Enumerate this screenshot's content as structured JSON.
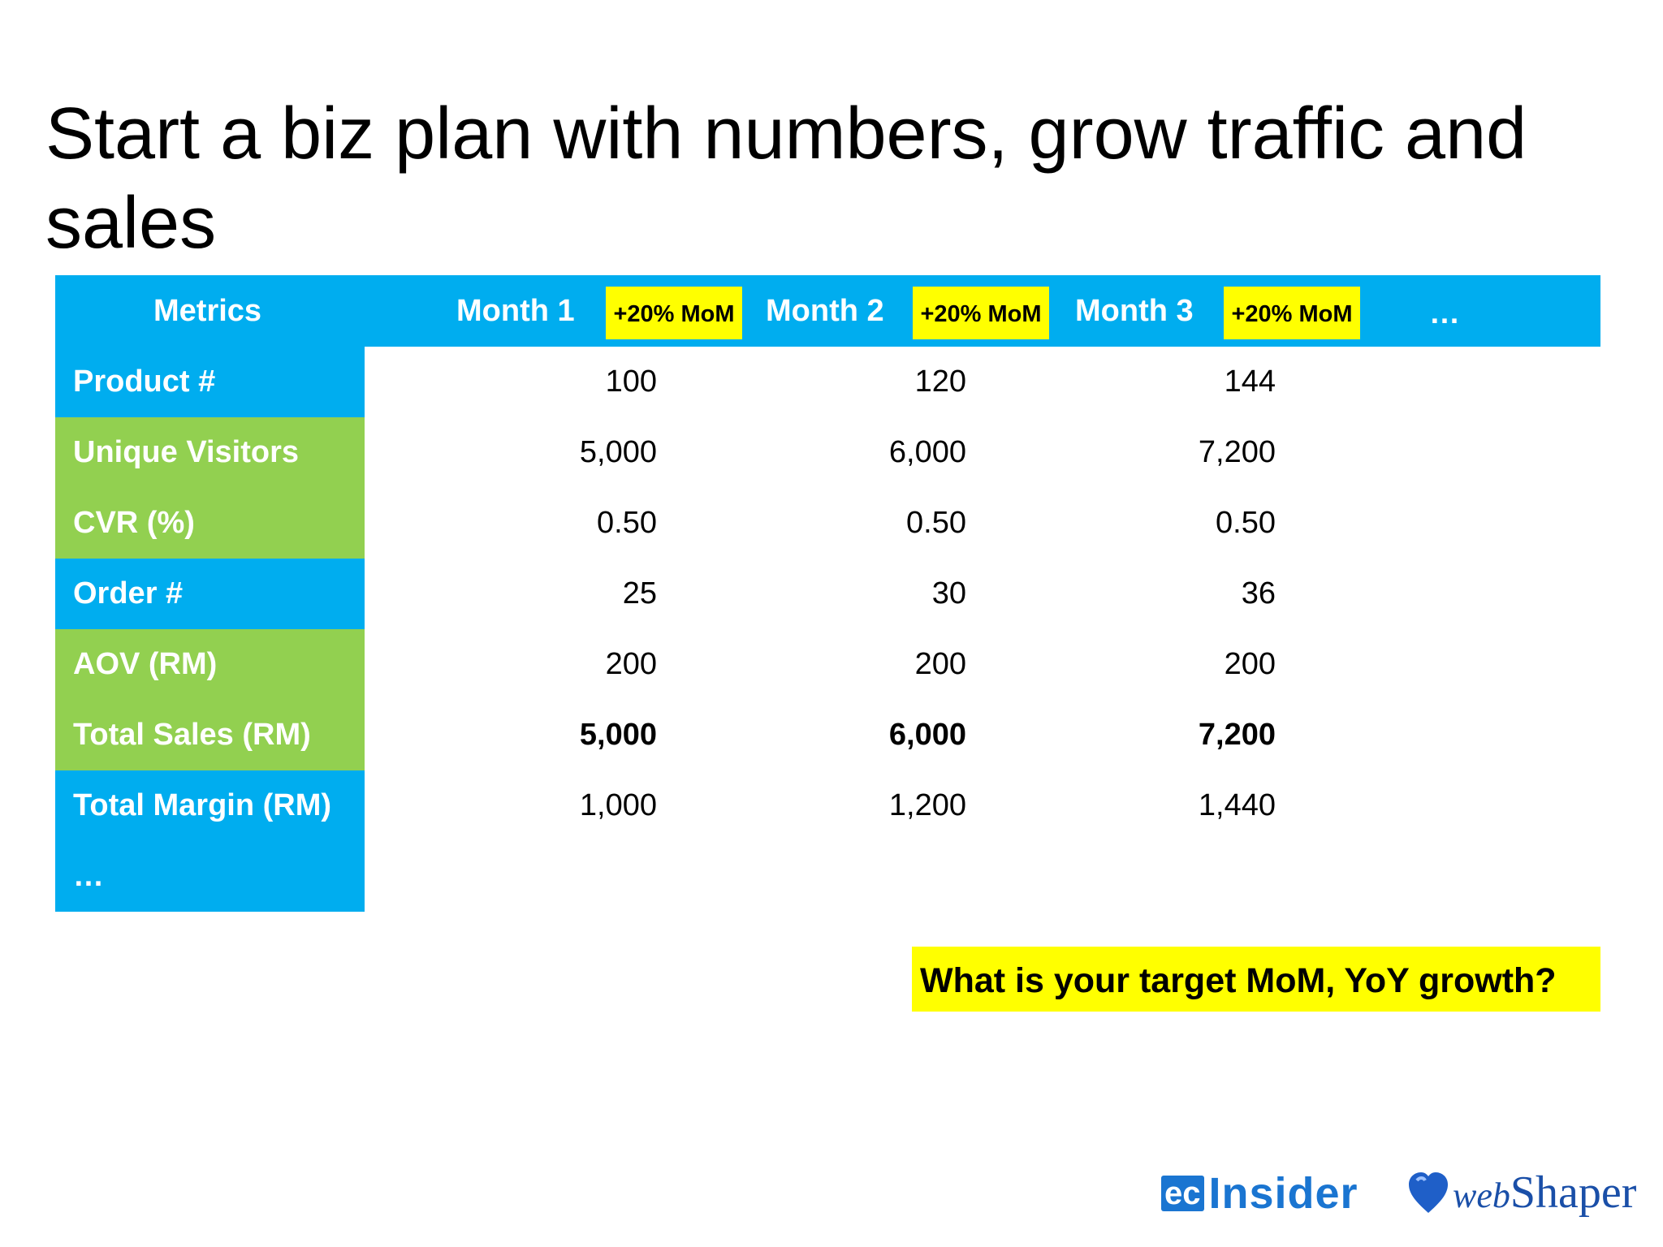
{
  "title": "Start a biz plan with numbers, grow traffic and sales",
  "header": {
    "metrics_label": "Metrics",
    "months": [
      "Month 1",
      "Month 2",
      "Month 3"
    ],
    "mom_badge": "+20% MoM",
    "ellipsis": "…"
  },
  "rows": [
    {
      "label": "Product #",
      "values": [
        "100",
        "120",
        "144"
      ],
      "color": "#00adef",
      "bold": false
    },
    {
      "label": "Unique Visitors",
      "values": [
        "5,000",
        "6,000",
        "7,200"
      ],
      "color": "#92d050",
      "bold": false
    },
    {
      "label": "CVR (%)",
      "values": [
        "0.50",
        "0.50",
        "0.50"
      ],
      "color": "#92d050",
      "bold": false
    },
    {
      "label": "Order #",
      "values": [
        "25",
        "30",
        "36"
      ],
      "color": "#00adef",
      "bold": false
    },
    {
      "label": "AOV (RM)",
      "values": [
        "200",
        "200",
        "200"
      ],
      "color": "#92d050",
      "bold": false
    },
    {
      "label": "Total Sales (RM)",
      "values": [
        "5,000",
        "6,000",
        "7,200"
      ],
      "color": "#92d050",
      "bold": true
    },
    {
      "label": "Total Margin (RM)",
      "values": [
        "1,000",
        "1,200",
        "1,440"
      ],
      "color": "#00adef",
      "bold": false
    },
    {
      "label": "…",
      "values": [
        "",
        "",
        ""
      ],
      "color": "#00adef",
      "bold": false
    }
  ],
  "question": "What is your target MoM, YoY growth?",
  "logos": {
    "ec_box": "ec",
    "ec_word": "Insider",
    "ws_prefix": "web",
    "ws_word": "Shaper"
  },
  "colors": {
    "blue": "#00adef",
    "green": "#92d050",
    "yellow": "#ffff00"
  }
}
